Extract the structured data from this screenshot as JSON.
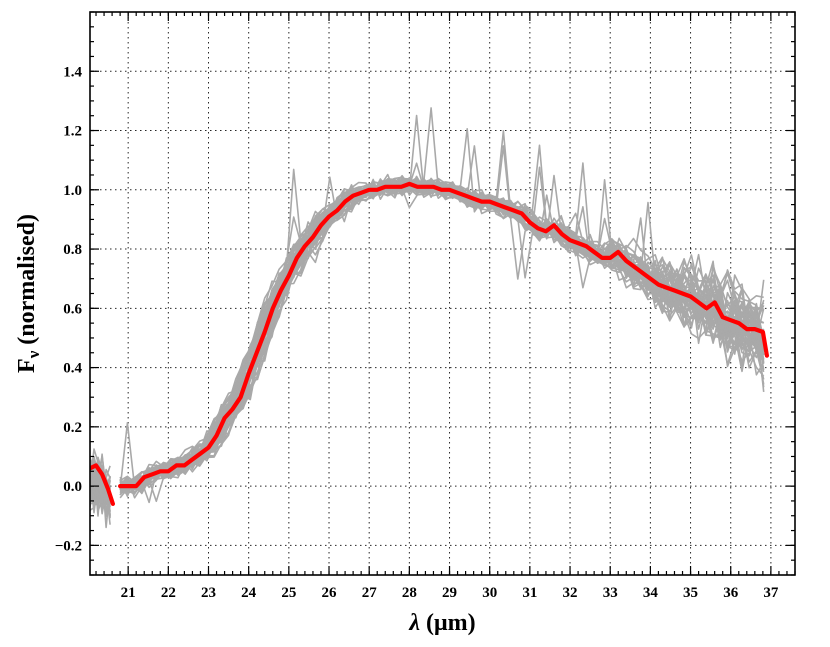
{
  "chart_data": {
    "type": "line",
    "title": "",
    "xlabel_symbol": "λ",
    "xlabel_unit": "(μm)",
    "ylabel_main": "F",
    "ylabel_sub": "ν",
    "ylabel_rest": " (normalised)",
    "xlim": [
      20.05,
      37.6
    ],
    "ylim": [
      -0.3,
      1.6
    ],
    "x_ticks": [
      21,
      22,
      23,
      24,
      25,
      26,
      27,
      28,
      29,
      30,
      31,
      32,
      33,
      34,
      35,
      36,
      37
    ],
    "y_ticks": [
      -0.2,
      0.0,
      0.2,
      0.4,
      0.6,
      0.8,
      1.0,
      1.2,
      1.4
    ],
    "y_tick_labels": [
      "−0.2",
      "0.0",
      "0.2",
      "0.4",
      "0.6",
      "0.8",
      "1.0",
      "1.2",
      "1.4"
    ],
    "grid": true,
    "colors": {
      "individual": "#a9a9a9",
      "mean": "#ff0000"
    },
    "mean_series": {
      "name": "mean",
      "segments": [
        {
          "x": [
            20.05,
            20.2,
            20.35,
            20.5,
            20.62
          ],
          "y": [
            0.06,
            0.07,
            0.04,
            -0.01,
            -0.06
          ]
        },
        {
          "x": [
            20.8,
            21.0,
            21.2,
            21.4,
            21.6,
            21.8,
            22.0,
            22.2,
            22.4,
            22.6,
            22.8,
            23.0,
            23.2,
            23.4,
            23.6,
            23.8,
            24.0,
            24.2,
            24.4,
            24.6,
            24.8,
            25.0,
            25.2,
            25.4,
            25.6,
            25.8,
            26.0,
            26.2,
            26.4,
            26.6,
            26.8,
            27.0,
            27.2,
            27.4,
            27.6,
            27.8,
            28.0,
            28.2,
            28.4,
            28.6,
            28.8,
            29.0,
            29.2,
            29.4,
            29.6,
            29.8,
            30.0,
            30.2,
            30.4,
            30.6,
            30.8,
            31.0,
            31.2,
            31.4,
            31.6,
            31.8,
            32.0,
            32.2,
            32.4,
            32.6,
            32.8,
            33.0,
            33.2,
            33.4,
            33.6,
            33.8,
            34.0,
            34.2,
            34.4,
            34.6,
            34.8,
            35.0,
            35.2,
            35.4,
            35.6,
            35.8,
            36.0,
            36.2,
            36.4,
            36.6,
            36.8,
            36.9
          ],
          "y": [
            0.0,
            0.0,
            0.0,
            0.03,
            0.04,
            0.05,
            0.05,
            0.07,
            0.07,
            0.09,
            0.11,
            0.13,
            0.17,
            0.23,
            0.26,
            0.3,
            0.38,
            0.45,
            0.52,
            0.6,
            0.66,
            0.71,
            0.77,
            0.81,
            0.84,
            0.88,
            0.91,
            0.93,
            0.96,
            0.98,
            0.99,
            1.0,
            1.0,
            1.01,
            1.01,
            1.01,
            1.02,
            1.01,
            1.01,
            1.01,
            1.0,
            1.0,
            0.99,
            0.98,
            0.97,
            0.96,
            0.96,
            0.95,
            0.94,
            0.93,
            0.92,
            0.89,
            0.87,
            0.86,
            0.88,
            0.85,
            0.83,
            0.82,
            0.81,
            0.79,
            0.77,
            0.77,
            0.79,
            0.76,
            0.74,
            0.72,
            0.7,
            0.68,
            0.67,
            0.66,
            0.65,
            0.64,
            0.62,
            0.6,
            0.62,
            0.57,
            0.56,
            0.55,
            0.53,
            0.53,
            0.52,
            0.44
          ]
        }
      ]
    },
    "individual_series_count": 45
  }
}
